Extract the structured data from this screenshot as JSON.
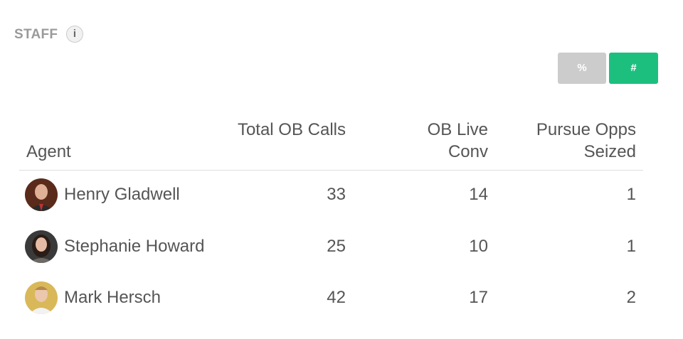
{
  "header": {
    "title": "STAFF",
    "info_icon": "i"
  },
  "toggle": {
    "percent": "%",
    "count": "#"
  },
  "table": {
    "columns": [
      "Agent",
      "Total OB Calls",
      "OB Live Conv",
      "Pursue Opps Seized"
    ],
    "rows": [
      [
        "Henry Gladwell",
        33,
        14,
        1
      ],
      [
        "Stephanie Howard",
        25,
        10,
        1
      ],
      [
        "Mark Hersch",
        42,
        17,
        2
      ]
    ]
  }
}
